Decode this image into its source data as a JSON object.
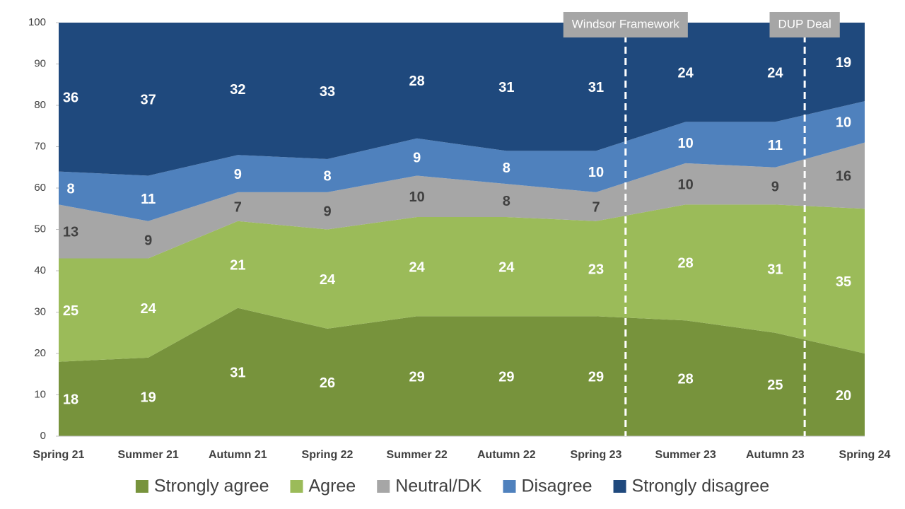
{
  "chart_data": {
    "type": "stacked_area",
    "categories": [
      "Spring 21",
      "Summer 21",
      "Autumn 21",
      "Spring 22",
      "Summer 22",
      "Autumn 22",
      "Spring 23",
      "Summer 23",
      "Autumn 23",
      "Spring 24"
    ],
    "series": [
      {
        "name": "Strongly agree",
        "color": "#77933c",
        "label_color": "#ffffff",
        "values": [
          18,
          19,
          31,
          26,
          29,
          29,
          29,
          28,
          25,
          20
        ]
      },
      {
        "name": "Agree",
        "color": "#9bbb59",
        "label_color": "#ffffff",
        "values": [
          25,
          24,
          21,
          24,
          24,
          24,
          23,
          28,
          31,
          35
        ]
      },
      {
        "name": "Neutral/DK",
        "color": "#a6a6a6",
        "label_color": "#404040",
        "values": [
          13,
          9,
          7,
          9,
          10,
          8,
          7,
          10,
          9,
          16
        ]
      },
      {
        "name": "Disagree",
        "color": "#4f81bd",
        "label_color": "#ffffff",
        "values": [
          8,
          11,
          9,
          8,
          9,
          8,
          10,
          10,
          11,
          10
        ]
      },
      {
        "name": "Strongly disagree",
        "color": "#1f497d",
        "label_color": "#ffffff",
        "values": [
          36,
          37,
          32,
          33,
          28,
          31,
          31,
          24,
          24,
          19
        ]
      }
    ],
    "annotations": [
      "Windsor Framework",
      "DUP Deal"
    ],
    "ylim": [
      0,
      100
    ],
    "yticks": [
      0,
      10,
      20,
      30,
      40,
      50,
      60,
      70,
      80,
      90,
      100
    ],
    "legend": "bottom"
  }
}
